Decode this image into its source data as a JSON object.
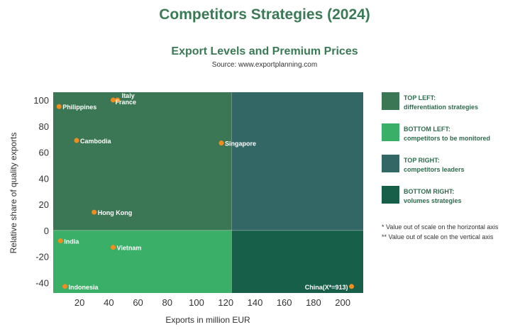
{
  "title": "Competitors Strategies (2024)",
  "subtitle": "Export Levels and Premium Prices",
  "source": "Source: www.exportplanning.com",
  "colors": {
    "title": "#3a7a55",
    "top_left": "#3b7754",
    "bottom_left": "#3aaf67",
    "top_right": "#336765",
    "bottom_right": "#175f48",
    "point": "#f28c1e"
  },
  "legend": [
    {
      "line1": "TOP LEFT:",
      "line2": "differentiation strategies",
      "color": "#3b7754"
    },
    {
      "line1": "BOTTOM LEFT:",
      "line2": "competitors to be monitored",
      "color": "#3aaf67"
    },
    {
      "line1": "TOP RIGHT:",
      "line2": "competitors leaders",
      "color": "#336765"
    },
    {
      "line1": "BOTTOM RIGHT:",
      "line2": "volumes strategies",
      "color": "#175f48"
    }
  ],
  "notes": [
    "* Value out of scale on the horizontal axis",
    "** Value out of scale on the vertical axis"
  ],
  "chart_data": {
    "type": "scatter",
    "xlabel": "Exports in million EUR",
    "ylabel": "Relative share of quality exports",
    "xlim": [
      2,
      214
    ],
    "ylim": [
      -48,
      106
    ],
    "x_ticks": [
      20,
      40,
      60,
      80,
      100,
      120,
      140,
      160,
      180,
      200
    ],
    "y_ticks": [
      -40,
      -20,
      0,
      20,
      40,
      60,
      80,
      100
    ],
    "quadrant_split": {
      "x": 124,
      "y": 0
    },
    "points": [
      {
        "label": "Italy",
        "x": 46,
        "y": 100
      },
      {
        "label": "France",
        "x": 43,
        "y": 100
      },
      {
        "label": "Philippines",
        "x": 6,
        "y": 95
      },
      {
        "label": "Cambodia",
        "x": 18,
        "y": 69
      },
      {
        "label": "Singapore",
        "x": 117,
        "y": 67
      },
      {
        "label": "Hong Kong",
        "x": 30,
        "y": 14
      },
      {
        "label": "India",
        "x": 7,
        "y": -8
      },
      {
        "label": "Vietnam",
        "x": 43,
        "y": -13
      },
      {
        "label": "Indonesia",
        "x": 10,
        "y": -43
      },
      {
        "label": "China(X*=913)",
        "x": 206,
        "y": -43
      }
    ]
  }
}
